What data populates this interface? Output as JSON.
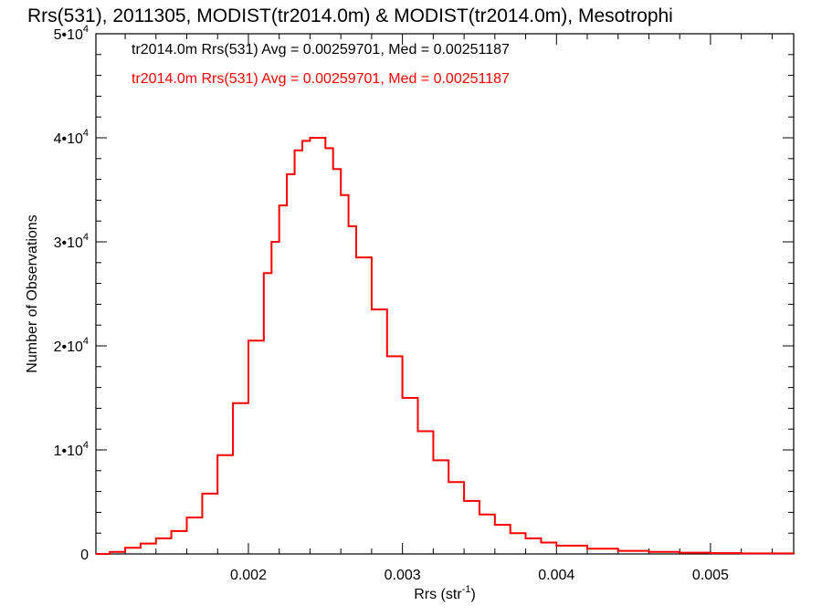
{
  "chart_data": {
    "type": "line",
    "step": true,
    "title": "Rrs(531), 2011305, MODIST(tr2014.0m) & MODIST(tr2014.0m), Mesotrophi",
    "xlabel": "Rrs (str",
    "xlabel_exp": "-1",
    "xlabel_close": ")",
    "ylabel": "Number of Observations",
    "xlim": [
      0.00101,
      0.00554
    ],
    "ylim": [
      0,
      50000
    ],
    "x_ticks": [
      {
        "value": 0.002,
        "label": "0.002"
      },
      {
        "value": 0.003,
        "label": "0.003"
      },
      {
        "value": 0.004,
        "label": "0.004"
      },
      {
        "value": 0.005,
        "label": "0.005"
      }
    ],
    "y_ticks": [
      {
        "value": 0,
        "mant": "0",
        "exp": ""
      },
      {
        "value": 10000,
        "mant": "1•10",
        "exp": "4"
      },
      {
        "value": 20000,
        "mant": "2•10",
        "exp": "4"
      },
      {
        "value": 30000,
        "mant": "3•10",
        "exp": "4"
      },
      {
        "value": 40000,
        "mant": "4•10",
        "exp": "4"
      },
      {
        "value": 50000,
        "mant": "5•10",
        "exp": "4"
      }
    ],
    "grid": false,
    "legend_position": "top-left",
    "series": [
      {
        "name": "tr2014.0m Rrs(531) Avg = 0.00259701, Med = 0.00251187",
        "color": "#000000",
        "points": [
          [
            0.00101,
            0
          ],
          [
            0.0011,
            200
          ],
          [
            0.0012,
            600
          ],
          [
            0.0013,
            1000
          ],
          [
            0.0014,
            1500
          ],
          [
            0.0015,
            2200
          ],
          [
            0.0016,
            3500
          ],
          [
            0.0017,
            5800
          ],
          [
            0.0018,
            9500
          ],
          [
            0.0019,
            14500
          ],
          [
            0.002,
            20500
          ],
          [
            0.0021,
            27000
          ],
          [
            0.00215,
            30000
          ],
          [
            0.0022,
            33500
          ],
          [
            0.00225,
            36500
          ],
          [
            0.0023,
            38800
          ],
          [
            0.00235,
            39700
          ],
          [
            0.0024,
            40000
          ],
          [
            0.00245,
            40000
          ],
          [
            0.0025,
            39000
          ],
          [
            0.00255,
            37000
          ],
          [
            0.0026,
            34500
          ],
          [
            0.00265,
            31500
          ],
          [
            0.0027,
            28500
          ],
          [
            0.0028,
            23500
          ],
          [
            0.0029,
            19000
          ],
          [
            0.003,
            15000
          ],
          [
            0.0031,
            11800
          ],
          [
            0.0032,
            9000
          ],
          [
            0.0033,
            6900
          ],
          [
            0.0034,
            5100
          ],
          [
            0.0035,
            3800
          ],
          [
            0.0036,
            2800
          ],
          [
            0.0037,
            2000
          ],
          [
            0.0038,
            1500
          ],
          [
            0.0039,
            1100
          ],
          [
            0.004,
            800
          ],
          [
            0.0042,
            500
          ],
          [
            0.0044,
            300
          ],
          [
            0.0046,
            200
          ],
          [
            0.0048,
            120
          ],
          [
            0.005,
            80
          ],
          [
            0.0052,
            50
          ],
          [
            0.00554,
            30
          ]
        ]
      },
      {
        "name": "tr2014.0m Rrs(531) Avg = 0.00259701, Med = 0.00251187",
        "color": "#ff0000",
        "points": [
          [
            0.00101,
            0
          ],
          [
            0.0011,
            200
          ],
          [
            0.0012,
            600
          ],
          [
            0.0013,
            1000
          ],
          [
            0.0014,
            1500
          ],
          [
            0.0015,
            2200
          ],
          [
            0.0016,
            3500
          ],
          [
            0.0017,
            5800
          ],
          [
            0.0018,
            9500
          ],
          [
            0.0019,
            14500
          ],
          [
            0.002,
            20500
          ],
          [
            0.0021,
            27000
          ],
          [
            0.00215,
            30000
          ],
          [
            0.0022,
            33500
          ],
          [
            0.00225,
            36500
          ],
          [
            0.0023,
            38800
          ],
          [
            0.00235,
            39700
          ],
          [
            0.0024,
            40000
          ],
          [
            0.00245,
            40000
          ],
          [
            0.0025,
            39000
          ],
          [
            0.00255,
            37000
          ],
          [
            0.0026,
            34500
          ],
          [
            0.00265,
            31500
          ],
          [
            0.0027,
            28500
          ],
          [
            0.0028,
            23500
          ],
          [
            0.0029,
            19000
          ],
          [
            0.003,
            15000
          ],
          [
            0.0031,
            11800
          ],
          [
            0.0032,
            9000
          ],
          [
            0.0033,
            6900
          ],
          [
            0.0034,
            5100
          ],
          [
            0.0035,
            3800
          ],
          [
            0.0036,
            2800
          ],
          [
            0.0037,
            2000
          ],
          [
            0.0038,
            1500
          ],
          [
            0.0039,
            1100
          ],
          [
            0.004,
            800
          ],
          [
            0.0042,
            500
          ],
          [
            0.0044,
            300
          ],
          [
            0.0046,
            200
          ],
          [
            0.0048,
            120
          ],
          [
            0.005,
            80
          ],
          [
            0.0052,
            50
          ],
          [
            0.00554,
            30
          ]
        ]
      }
    ]
  }
}
